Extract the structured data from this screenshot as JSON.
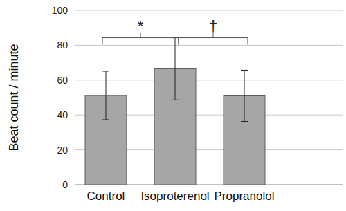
{
  "chart_data": {
    "type": "bar",
    "y_label": "Beat count / minute",
    "categories": [
      "Control",
      "Isoproterenol",
      "Propranolol"
    ],
    "values": [
      51.2,
      66.5,
      51.0
    ],
    "errors": [
      13.9,
      17.8,
      14.7
    ],
    "color": "#a6a6a6",
    "ylim": [
      0,
      100
    ],
    "yticks": [
      0,
      20,
      40,
      60,
      80,
      100
    ],
    "grid": true,
    "annotations": [
      {
        "text": "*",
        "from": "Control",
        "to": "Isoproterenol"
      },
      {
        "text": "†",
        "from": "Isoproterenol",
        "to": "Propranolol"
      }
    ]
  }
}
